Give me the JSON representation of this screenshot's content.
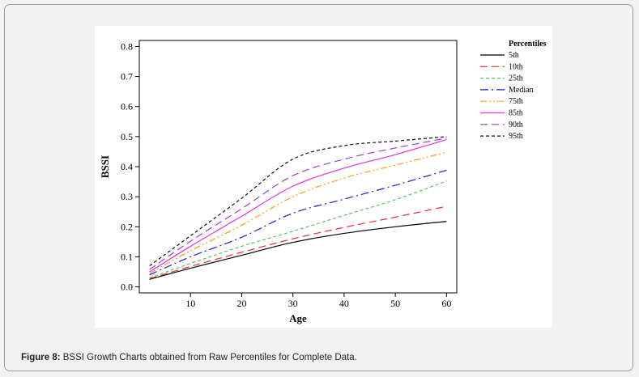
{
  "caption": {
    "label": "Figure 8:",
    "text": " BSSI Growth Charts obtained from Raw Percentiles for Complete Data."
  },
  "chart_data": {
    "type": "line",
    "title": "",
    "xlabel": "Age",
    "ylabel": "BSSI",
    "xlim": [
      0,
      62
    ],
    "ylim": [
      -0.02,
      0.82
    ],
    "xticks": [
      10,
      20,
      30,
      40,
      50,
      60
    ],
    "yticks": [
      0.0,
      0.1,
      0.2,
      0.3,
      0.4,
      0.5,
      0.6,
      0.7,
      0.8
    ],
    "ytick_labels": [
      "0.0",
      "0.1",
      "0.2",
      "0.3",
      "0.4",
      "0.5",
      "0.6",
      "0.7",
      "0.8"
    ],
    "xtick_labels": [
      "10",
      "20",
      "30",
      "40",
      "50",
      "60"
    ],
    "legend_title": "Percentiles",
    "legend_position": "right",
    "grid": false,
    "series": [
      {
        "name": "5th",
        "color": "#000000",
        "dash": "solid",
        "x": [
          2,
          10,
          20,
          30,
          40,
          50,
          60
        ],
        "y": [
          0.025,
          0.062,
          0.105,
          0.148,
          0.178,
          0.2,
          0.218
        ]
      },
      {
        "name": "10th",
        "color": "#e8302b",
        "dash": "long-dash",
        "x": [
          2,
          10,
          20,
          30,
          40,
          50,
          60
        ],
        "y": [
          0.027,
          0.068,
          0.115,
          0.16,
          0.198,
          0.232,
          0.268
        ]
      },
      {
        "name": "25th",
        "color": "#5cc25c",
        "dash": "short-dash",
        "x": [
          2,
          10,
          20,
          30,
          40,
          50,
          60
        ],
        "y": [
          0.03,
          0.078,
          0.135,
          0.185,
          0.238,
          0.29,
          0.352
        ]
      },
      {
        "name": "Median",
        "color": "#1a1adb",
        "dash": "dash-dot",
        "x": [
          2,
          10,
          20,
          30,
          40,
          50,
          60
        ],
        "y": [
          0.04,
          0.1,
          0.165,
          0.245,
          0.292,
          0.338,
          0.388
        ]
      },
      {
        "name": "75th",
        "color": "#ff9a1a",
        "dash": "dash-dot-dot",
        "x": [
          2,
          10,
          20,
          30,
          40,
          50,
          60
        ],
        "y": [
          0.045,
          0.12,
          0.205,
          0.3,
          0.362,
          0.405,
          0.448
        ]
      },
      {
        "name": "85th",
        "color": "#e833e0",
        "dash": "solid",
        "x": [
          2,
          10,
          20,
          30,
          40,
          50,
          60
        ],
        "y": [
          0.05,
          0.135,
          0.235,
          0.335,
          0.395,
          0.44,
          0.49
        ]
      },
      {
        "name": "90th",
        "color": "#9b3fd0",
        "dash": "long-dash",
        "x": [
          2,
          10,
          20,
          30,
          40,
          50,
          60
        ],
        "y": [
          0.058,
          0.152,
          0.26,
          0.37,
          0.425,
          0.462,
          0.495
        ]
      },
      {
        "name": "95th",
        "color": "#111111",
        "dash": "short-dash",
        "x": [
          2,
          10,
          20,
          30,
          40,
          50,
          60
        ],
        "y": [
          0.07,
          0.17,
          0.295,
          0.425,
          0.47,
          0.485,
          0.5
        ]
      }
    ]
  }
}
